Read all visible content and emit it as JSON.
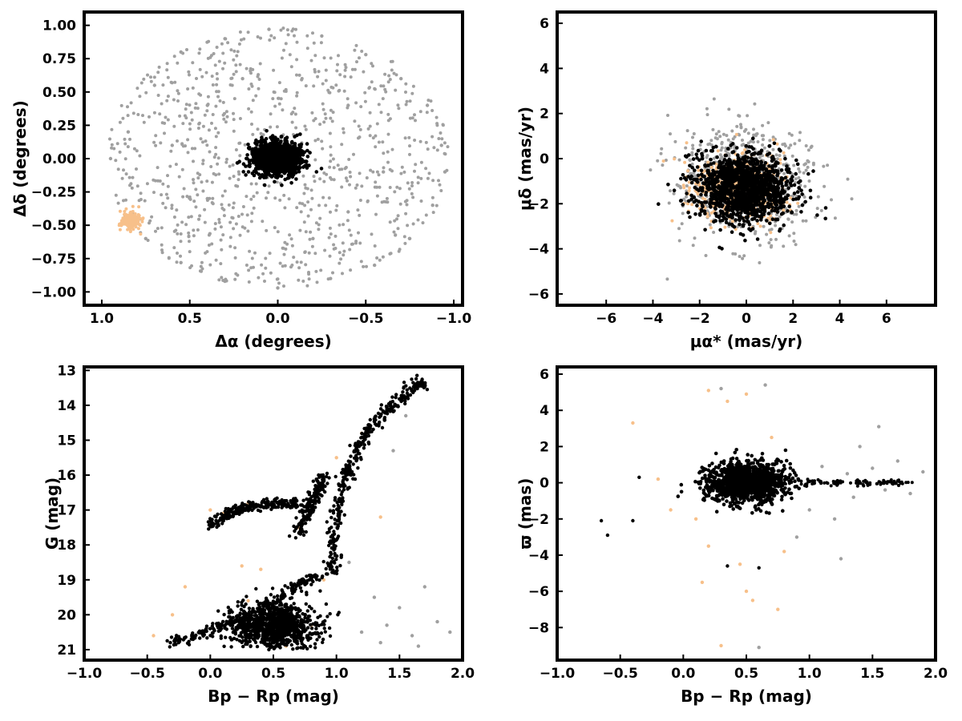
{
  "colors": {
    "field_stars": "#a0a0a0",
    "cluster_members": "#000000",
    "companion_stars": "#f7c08a",
    "axes": "#000000"
  },
  "chart_data": [
    {
      "id": "panel_position",
      "type": "scatter",
      "xlabel": "Δα (degrees)",
      "ylabel": "Δδ (degrees)",
      "xlim": [
        1.1,
        -1.05
      ],
      "ylim": [
        -1.1,
        1.1
      ],
      "xticks": [
        1.0,
        0.5,
        0.0,
        -0.5,
        -1.0
      ],
      "xtick_labels": [
        "1.0",
        "0.5",
        "0.0",
        "−0.5",
        "−1.0"
      ],
      "yticks": [
        1.0,
        0.75,
        0.5,
        0.25,
        0.0,
        -0.25,
        -0.5,
        -0.75,
        -1.0
      ],
      "ytick_labels": [
        "1.00",
        "0.75",
        "0.50",
        "0.25",
        "0.00",
        "−0.25",
        "−0.50",
        "−0.75",
        "−1.00"
      ],
      "series": [
        {
          "role": "field_stars",
          "points": [
            [
              0.85,
              0.2
            ],
            [
              0.7,
              0.55
            ],
            [
              0.55,
              0.8
            ],
            [
              0.3,
              0.9
            ],
            [
              0.05,
              0.97
            ],
            [
              -0.25,
              0.92
            ],
            [
              -0.5,
              0.78
            ],
            [
              -0.7,
              0.6
            ],
            [
              -0.85,
              0.4
            ],
            [
              -0.93,
              0.1
            ],
            [
              -0.95,
              -0.1
            ],
            [
              -0.88,
              -0.35
            ],
            [
              -0.75,
              -0.6
            ],
            [
              -0.55,
              -0.8
            ],
            [
              -0.3,
              -0.9
            ],
            [
              0.0,
              -0.97
            ],
            [
              0.3,
              -0.92
            ],
            [
              0.55,
              -0.78
            ],
            [
              0.75,
              -0.6
            ],
            [
              0.95,
              0.0
            ],
            [
              0.4,
              0.4
            ],
            [
              -0.4,
              0.4
            ],
            [
              -0.4,
              -0.4
            ],
            [
              0.4,
              -0.3
            ],
            [
              0.2,
              0.6
            ],
            [
              -0.2,
              -0.6
            ],
            [
              0.6,
              0.1
            ],
            [
              -0.6,
              -0.1
            ]
          ]
        },
        {
          "role": "cluster_members",
          "center": [
            0.0,
            0.0
          ],
          "spread": [
            0.12,
            0.11
          ]
        },
        {
          "role": "companion_stars",
          "center": [
            0.83,
            -0.47
          ],
          "spread": [
            0.05,
            0.06
          ]
        }
      ]
    },
    {
      "id": "panel_proper_motion",
      "type": "scatter",
      "xlabel": "μα* (mas/yr)",
      "ylabel": "μδ (mas/yr)",
      "xlim": [
        -8.1,
        8.1
      ],
      "ylim": [
        -6.5,
        6.5
      ],
      "xticks": [
        -6,
        -4,
        -2,
        0,
        2,
        4,
        6
      ],
      "xtick_labels": [
        "−6",
        "−4",
        "−2",
        "0",
        "2",
        "4",
        "6"
      ],
      "yticks": [
        6,
        4,
        2,
        0,
        -2,
        -4,
        -6
      ],
      "ytick_labels": [
        "6",
        "4",
        "2",
        "0",
        "−2",
        "−4",
        "−6"
      ],
      "series": [
        {
          "role": "field_stars",
          "center": [
            0.0,
            -1.0
          ],
          "spread": [
            2.5,
            2.2
          ]
        },
        {
          "role": "companion_stars",
          "center": [
            -0.3,
            -1.3
          ],
          "spread": [
            1.8,
            1.3
          ]
        },
        {
          "role": "cluster_members",
          "center": [
            -0.1,
            -1.3
          ],
          "spread": [
            1.8,
            1.4
          ]
        }
      ]
    },
    {
      "id": "panel_cmd",
      "type": "scatter",
      "xlabel": "Bp − Rp (mag)",
      "ylabel": "G (mag)",
      "xlim": [
        -1.0,
        2.0
      ],
      "ylim": [
        12.9,
        21.3
      ],
      "y_inverted": true,
      "xticks": [
        -1.0,
        -0.5,
        0.0,
        0.5,
        1.0,
        1.5,
        2.0
      ],
      "xtick_labels": [
        "−1.0",
        "−0.5",
        "0.0",
        "0.5",
        "1.0",
        "1.5",
        "2.0"
      ],
      "yticks": [
        21,
        20,
        19,
        18,
        17,
        16,
        15,
        14,
        13
      ],
      "ytick_labels": [
        "21",
        "20",
        "19",
        "18",
        "17",
        "16",
        "15",
        "14",
        "13"
      ],
      "series": [
        {
          "role": "field_stars",
          "points": [
            [
              1.2,
              20.5
            ],
            [
              1.4,
              20.3
            ],
            [
              1.6,
              20.6
            ],
            [
              1.8,
              20.2
            ],
            [
              1.9,
              20.5
            ],
            [
              1.3,
              19.5
            ],
            [
              1.5,
              19.8
            ],
            [
              1.7,
              19.2
            ],
            [
              1.1,
              18.5
            ],
            [
              1.0,
              17.5
            ],
            [
              0.95,
              17.0
            ],
            [
              1.55,
              14.3
            ],
            [
              1.45,
              15.3
            ],
            [
              2.0,
              18.3
            ],
            [
              1.35,
              20.8
            ],
            [
              1.65,
              20.9
            ]
          ]
        },
        {
          "role": "companion_stars",
          "points": [
            [
              -0.45,
              20.6
            ],
            [
              -0.3,
              20.0
            ],
            [
              -0.2,
              19.2
            ],
            [
              0.0,
              17.0
            ],
            [
              0.1,
              17.1
            ],
            [
              0.3,
              16.8
            ],
            [
              0.4,
              18.7
            ],
            [
              0.3,
              19.6
            ],
            [
              0.6,
              20.9
            ],
            [
              0.8,
              20.3
            ],
            [
              0.9,
              19.0
            ],
            [
              0.85,
              16.5
            ],
            [
              1.0,
              15.5
            ],
            [
              1.2,
              14.8
            ],
            [
              1.35,
              17.2
            ],
            [
              0.25,
              18.6
            ],
            [
              0.7,
              17.5
            ]
          ]
        },
        {
          "role": "cluster_members",
          "sequences": {
            "red_giant_branch": [
              [
                0.95,
                18.8
              ],
              [
                0.98,
                18.0
              ],
              [
                1.0,
                17.2
              ],
              [
                1.05,
                16.3
              ],
              [
                1.1,
                15.8
              ],
              [
                1.2,
                15.0
              ],
              [
                1.3,
                14.5
              ],
              [
                1.45,
                14.0
              ],
              [
                1.6,
                13.5
              ],
              [
                1.7,
                13.3
              ]
            ],
            "horizontal_branch": [
              [
                0.0,
                17.5
              ],
              [
                0.1,
                17.2
              ],
              [
                0.2,
                17.0
              ],
              [
                0.3,
                16.9
              ],
              [
                0.45,
                16.8
              ],
              [
                0.6,
                16.8
              ],
              [
                0.7,
                16.8
              ]
            ],
            "asymptotic_branch": [
              [
                0.7,
                17.7
              ],
              [
                0.75,
                17.2
              ],
              [
                0.8,
                16.8
              ],
              [
                0.85,
                16.4
              ],
              [
                0.9,
                16.0
              ]
            ],
            "subgiant_branch": [
              [
                -0.3,
                20.8
              ],
              [
                -0.1,
                20.6
              ],
              [
                0.1,
                20.3
              ],
              [
                0.3,
                20.0
              ],
              [
                0.5,
                19.6
              ],
              [
                0.7,
                19.1
              ],
              [
                0.85,
                18.9
              ]
            ],
            "main_sequence_turnoff": [
              [
                0.5,
                20.9
              ],
              [
                0.5,
                20.3
              ],
              [
                0.55,
                19.9
              ],
              [
                0.6,
                20.5
              ],
              [
                0.65,
                20.1
              ],
              [
                0.45,
                20.6
              ]
            ]
          }
        }
      ]
    },
    {
      "id": "panel_parallax",
      "type": "scatter",
      "xlabel": "Bp − Rp (mag)",
      "ylabel": "ϖ (mas)",
      "xlim": [
        -1.0,
        2.0
      ],
      "ylim": [
        -9.8,
        6.4
      ],
      "xticks": [
        -1.0,
        -0.5,
        0.0,
        0.5,
        1.0,
        1.5,
        2.0
      ],
      "xtick_labels": [
        "−1.0",
        "−0.5",
        "0.0",
        "0.5",
        "1.0",
        "1.5",
        "2.0"
      ],
      "yticks": [
        6,
        4,
        2,
        0,
        -2,
        -4,
        -6,
        -8
      ],
      "ytick_labels": [
        "6",
        "4",
        "2",
        "0",
        "−2",
        "−4",
        "−6",
        "−8"
      ],
      "series": [
        {
          "role": "field_stars",
          "points": [
            [
              1.3,
              0.5
            ],
            [
              1.5,
              0.8
            ],
            [
              1.7,
              1.2
            ],
            [
              1.9,
              0.6
            ],
            [
              2.0,
              0.3
            ],
            [
              1.6,
              -0.4
            ],
            [
              1.8,
              -0.6
            ],
            [
              1.4,
              2.0
            ],
            [
              1.55,
              3.1
            ],
            [
              1.25,
              -4.2
            ],
            [
              1.0,
              -1.5
            ],
            [
              1.2,
              -2.0
            ],
            [
              0.9,
              -3.0
            ],
            [
              0.3,
              5.2
            ],
            [
              0.65,
              5.4
            ],
            [
              0.6,
              -9.1
            ],
            [
              1.1,
              0.9
            ],
            [
              1.35,
              -0.8
            ]
          ]
        },
        {
          "role": "companion_stars",
          "points": [
            [
              -0.4,
              3.3
            ],
            [
              0.2,
              5.1
            ],
            [
              0.35,
              4.5
            ],
            [
              0.5,
              4.9
            ],
            [
              0.45,
              -4.5
            ],
            [
              0.5,
              -6.0
            ],
            [
              0.55,
              -6.5
            ],
            [
              0.75,
              -7.0
            ],
            [
              0.3,
              -9.0
            ],
            [
              0.2,
              -3.5
            ],
            [
              0.1,
              -2.0
            ],
            [
              -0.1,
              -1.5
            ],
            [
              0.7,
              2.5
            ],
            [
              0.8,
              -3.8
            ],
            [
              -0.2,
              0.2
            ],
            [
              0.15,
              -5.5
            ]
          ]
        },
        {
          "role": "cluster_members",
          "center": [
            0.5,
            0.0
          ],
          "spread": [
            0.28,
            1.0
          ],
          "tail": [
            [
              0.8,
              0.0
            ],
            [
              1.0,
              0.0
            ],
            [
              1.2,
              0.0
            ],
            [
              1.4,
              0.0
            ],
            [
              1.6,
              0.0
            ],
            [
              1.7,
              0.0
            ]
          ],
          "outliers": [
            [
              -0.65,
              -2.1
            ],
            [
              -0.6,
              -2.9
            ],
            [
              -0.4,
              -2.1
            ],
            [
              -0.35,
              0.3
            ],
            [
              0.35,
              -4.6
            ],
            [
              0.6,
              -4.7
            ]
          ]
        }
      ]
    }
  ]
}
